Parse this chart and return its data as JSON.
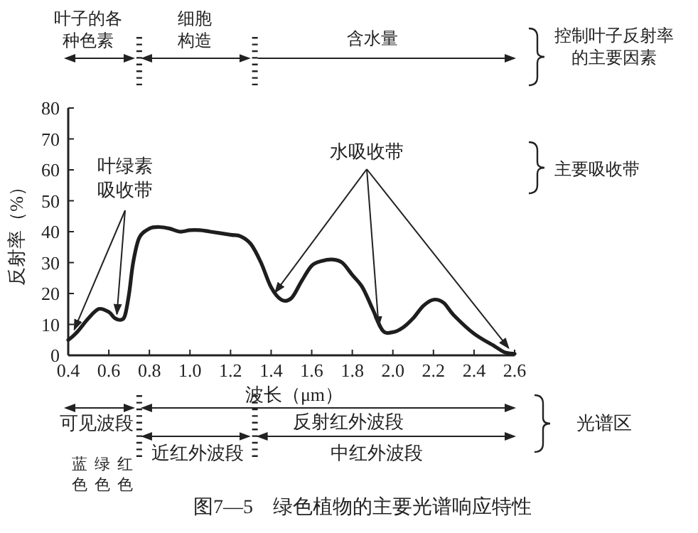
{
  "chart_data": {
    "type": "line",
    "title": "图7—5　绿色植物的主要光谱响应特性",
    "xlabel": "波长（μm）",
    "ylabel": "反射率（%）",
    "x": [
      0.4,
      0.42,
      0.45,
      0.5,
      0.55,
      0.6,
      0.63,
      0.66,
      0.68,
      0.7,
      0.72,
      0.75,
      0.8,
      0.85,
      0.9,
      0.95,
      1.0,
      1.05,
      1.1,
      1.2,
      1.25,
      1.3,
      1.35,
      1.4,
      1.45,
      1.5,
      1.55,
      1.6,
      1.65,
      1.7,
      1.75,
      1.8,
      1.85,
      1.9,
      1.95,
      2.0,
      2.05,
      2.1,
      2.15,
      2.2,
      2.25,
      2.3,
      2.4,
      2.5,
      2.55,
      2.6
    ],
    "series": [
      {
        "color": "#1e1e1e",
        "values": [
          5,
          6,
          8,
          12,
          15,
          14,
          12,
          11.5,
          13,
          20,
          30,
          38,
          41,
          41.5,
          41,
          40,
          40.5,
          40.5,
          40,
          39,
          38.5,
          36,
          30,
          22,
          18,
          18.5,
          24,
          29,
          30.5,
          31,
          30,
          26,
          22,
          15,
          8,
          7.5,
          9,
          12,
          16,
          18,
          17,
          13,
          7,
          3,
          1,
          0.5
        ]
      }
    ],
    "xlim": [
      0.4,
      2.6
    ],
    "ylim": [
      0,
      80
    ],
    "xticks": [
      0.4,
      0.6,
      0.8,
      {
        "value": 1.0,
        "label": "1.0"
      },
      1.2,
      1.4,
      1.6,
      1.8,
      {
        "value": 2.0,
        "label": "2.0"
      },
      2.2,
      2.4,
      2.6
    ],
    "yticks": [
      0,
      10,
      20,
      30,
      40,
      50,
      60,
      70,
      80
    ],
    "annotations": [
      "叶子的各种色素",
      "细胞构造",
      "含水量",
      "控制叶子反射率的主要因素",
      {
        "text": "叶绿素吸收带",
        "x": 0.64,
        "y": 12
      },
      {
        "text": "水吸收带",
        "x": 1.93,
        "y": 8
      },
      "主要吸收带",
      "可见波段",
      "反射红外波段",
      "近红外波段",
      "中红外波段",
      "蓝色",
      "绿色",
      "红色",
      "光谱区"
    ]
  }
}
